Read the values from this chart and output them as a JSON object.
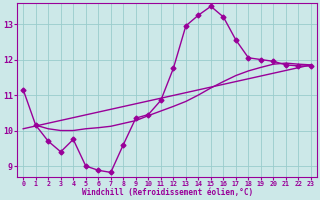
{
  "title": "",
  "xlabel": "Windchill (Refroidissement éolien,°C)",
  "bg_color": "#cce8e8",
  "line_color": "#990099",
  "grid_color": "#99cccc",
  "xlim": [
    -0.5,
    23.5
  ],
  "ylim": [
    8.7,
    13.6
  ],
  "xticks": [
    0,
    1,
    2,
    3,
    4,
    5,
    6,
    7,
    8,
    9,
    10,
    11,
    12,
    13,
    14,
    15,
    16,
    17,
    18,
    19,
    20,
    21,
    22,
    23
  ],
  "yticks": [
    9,
    10,
    11,
    12,
    13
  ],
  "curve1_x": [
    0,
    1,
    2,
    3,
    4,
    5,
    6,
    7,
    8,
    9,
    10,
    11,
    12,
    13,
    14,
    15,
    16,
    17,
    18,
    19,
    20,
    21,
    22,
    23
  ],
  "curve1_y": [
    11.15,
    10.15,
    9.7,
    9.4,
    9.75,
    9.0,
    8.88,
    8.82,
    9.6,
    10.35,
    10.45,
    10.85,
    11.75,
    12.95,
    13.25,
    13.5,
    13.2,
    12.55,
    12.05,
    12.0,
    11.95,
    11.85,
    11.82,
    11.82
  ],
  "curve2_x": [
    1,
    2,
    3,
    4,
    5,
    6,
    7,
    8,
    9,
    10,
    11,
    12,
    13,
    14,
    15,
    16,
    17,
    18,
    19,
    20,
    21,
    22,
    23
  ],
  "curve2_y": [
    10.15,
    10.05,
    10.0,
    10.0,
    10.05,
    10.08,
    10.12,
    10.2,
    10.28,
    10.42,
    10.55,
    10.68,
    10.82,
    11.0,
    11.2,
    11.38,
    11.55,
    11.68,
    11.78,
    11.87,
    11.9,
    11.87,
    11.85
  ],
  "curve3_x": [
    0,
    23
  ],
  "curve3_y": [
    10.05,
    11.85
  ],
  "marker": "D",
  "markersize": 2.5,
  "linewidth": 1.0
}
